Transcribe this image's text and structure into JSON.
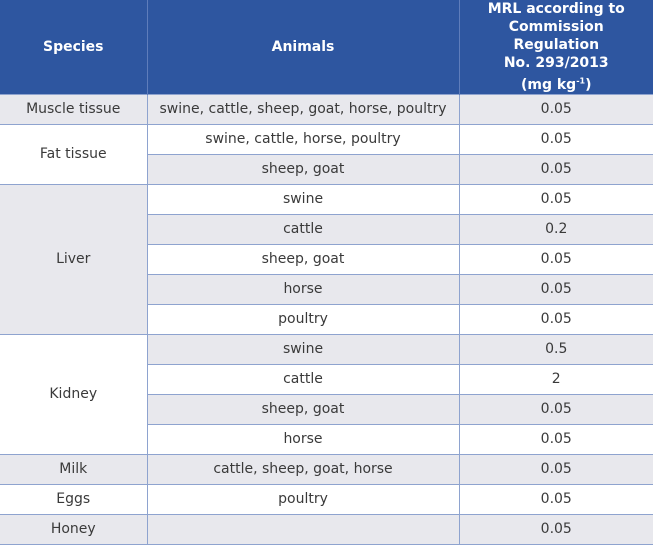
{
  "header": {
    "species": "Species",
    "animals": "Animals",
    "mrl_line1": "MRL according to",
    "mrl_line2": "Commission Regulation",
    "mrl_line3": "No. 293/2013",
    "mrl_unit_pre": "(mg kg",
    "mrl_unit_sup": "-1",
    "mrl_unit_post": ")"
  },
  "groups": [
    {
      "species": "Muscle tissue",
      "rows": [
        {
          "animals": "swine, cattle, sheep, goat, horse, poultry",
          "mrl": "0.05"
        }
      ]
    },
    {
      "species": "Fat tissue",
      "rows": [
        {
          "animals": "swine, cattle, horse, poultry",
          "mrl": "0.05"
        },
        {
          "animals": "sheep, goat",
          "mrl": "0.05"
        }
      ]
    },
    {
      "species": "Liver",
      "rows": [
        {
          "animals": "swine",
          "mrl": "0.05"
        },
        {
          "animals": "cattle",
          "mrl": "0.2"
        },
        {
          "animals": "sheep, goat",
          "mrl": "0.05"
        },
        {
          "animals": "horse",
          "mrl": "0.05"
        },
        {
          "animals": "poultry",
          "mrl": "0.05"
        }
      ]
    },
    {
      "species": "Kidney",
      "rows": [
        {
          "animals": "swine",
          "mrl": "0.5"
        },
        {
          "animals": "cattle",
          "mrl": "2"
        },
        {
          "animals": "sheep, goat",
          "mrl": "0.05"
        },
        {
          "animals": "horse",
          "mrl": "0.05"
        }
      ]
    },
    {
      "species": "Milk",
      "rows": [
        {
          "animals": "cattle, sheep, goat, horse",
          "mrl": "0.05"
        }
      ]
    },
    {
      "species": "Eggs",
      "rows": [
        {
          "animals": "poultry",
          "mrl": "0.05"
        }
      ]
    },
    {
      "species": "Honey",
      "rows": [
        {
          "animals": "",
          "mrl": "0.05"
        }
      ]
    }
  ]
}
